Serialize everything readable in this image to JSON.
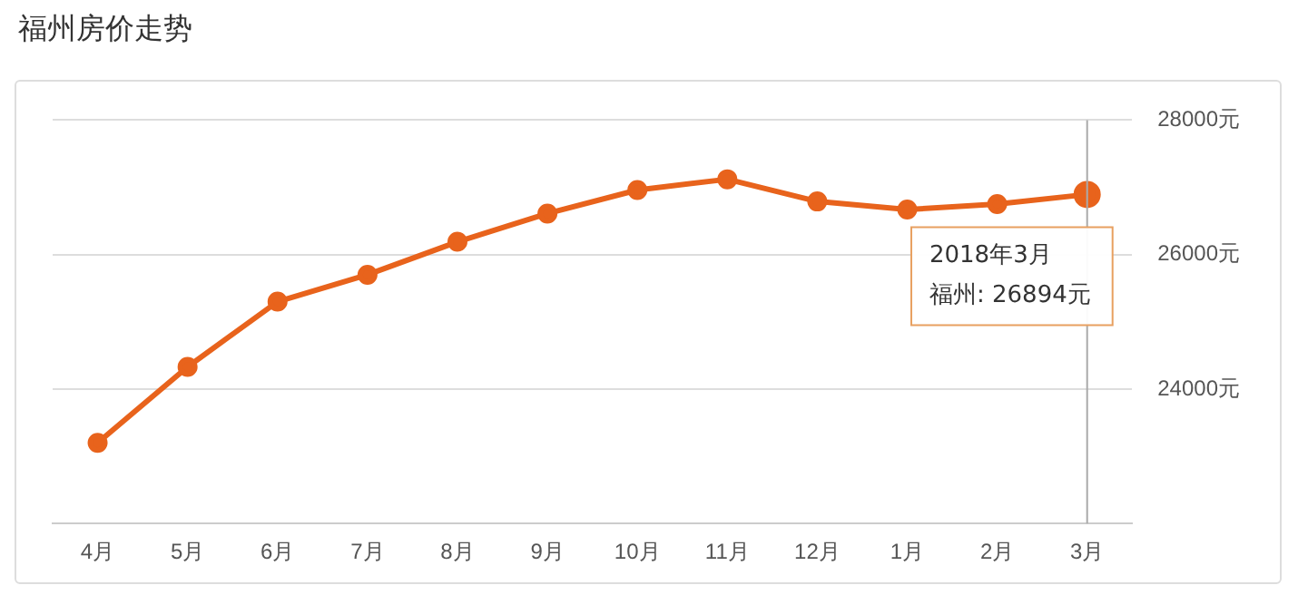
{
  "chart_data": {
    "type": "line",
    "title": "福州房价走势",
    "categories": [
      "4月",
      "5月",
      "6月",
      "7月",
      "8月",
      "9月",
      "10月",
      "11月",
      "12月",
      "1月",
      "2月",
      "3月"
    ],
    "series": [
      {
        "color": "#e8631c",
        "values": [
          23200,
          24330,
          25300,
          25700,
          26190,
          26610,
          26960,
          27120,
          26790,
          26670,
          26750,
          26894
        ]
      }
    ],
    "ylim": [
      22000,
      28000
    ],
    "yticks": [
      {
        "value": 22000,
        "label": null
      },
      {
        "value": 24000,
        "label": "24000元"
      },
      {
        "value": 26000,
        "label": "26000元"
      },
      {
        "value": 28000,
        "label": "28000元"
      }
    ],
    "grid": "y",
    "legend": false,
    "marker": "circle",
    "line_style": "solid",
    "ref_lines": [
      {
        "axis": "x",
        "value": "3月",
        "color": "#aaaaaa"
      }
    ],
    "annotations": [
      {
        "text": "2018年3月",
        "x": "3月",
        "y": 26894
      },
      "福州: 26894元"
    ]
  }
}
